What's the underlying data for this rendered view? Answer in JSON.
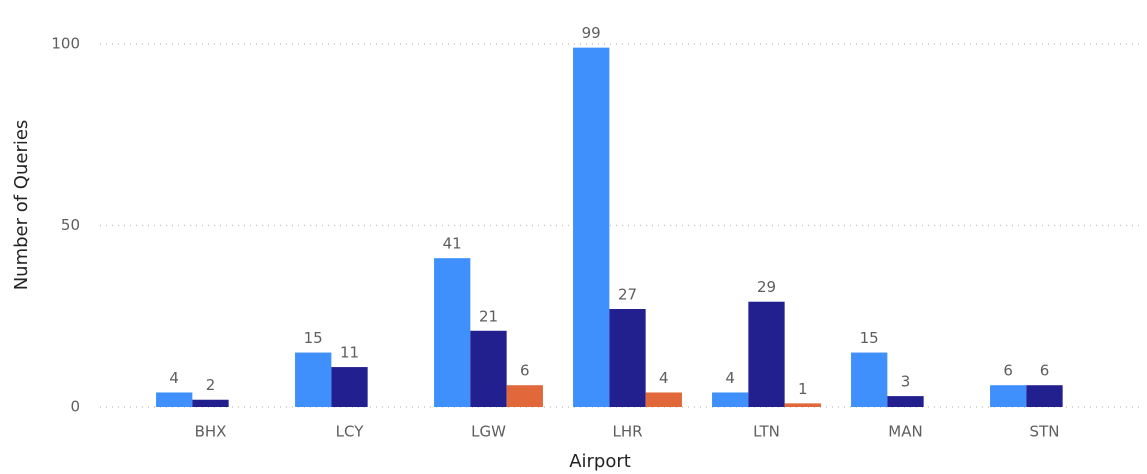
{
  "chart_data": {
    "type": "bar",
    "x_label": "Airport",
    "y_label": "Number of Queries",
    "categories": [
      "BHX",
      "LCY",
      "LGW",
      "LHR",
      "LTN",
      "MAN",
      "STN"
    ],
    "series": [
      {
        "color": "#3f8ffc",
        "values": [
          4,
          15,
          41,
          99,
          4,
          15,
          6
        ]
      },
      {
        "color": "#22208f",
        "values": [
          2,
          11,
          21,
          27,
          29,
          3,
          6
        ]
      },
      {
        "color": "#e0683a",
        "values": [
          null,
          null,
          6,
          4,
          1,
          null,
          null
        ]
      }
    ],
    "ylim": [
      0,
      100
    ],
    "yticks": [
      0,
      50,
      100
    ],
    "grid": true,
    "data_labels": true
  }
}
